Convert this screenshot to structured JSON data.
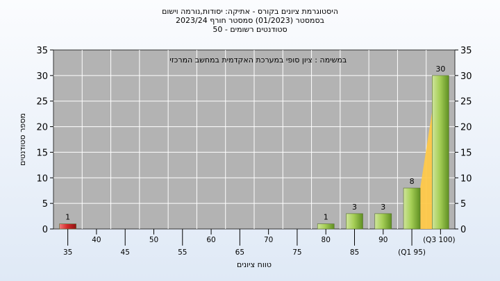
{
  "chart_data": {
    "type": "bar",
    "title": "היסטוגרמת ציונים בקורס - אתיקה: יסודות,נורמה וישום",
    "subtitle_lines": [
      "בסמסטר  (01/2023)  סמסטר חורף  2023/24",
      "סטודנטים רשומים - 50"
    ],
    "annotation": "במשימה : ציון סופי במערכת האקדמית במחשב המרכזי",
    "xlabel": "טווח ציונים",
    "ylabel": "מספר סטודנטים",
    "ylim": [
      0,
      35
    ],
    "yticks": [
      0,
      5,
      10,
      15,
      20,
      25,
      30,
      35
    ],
    "grid": true,
    "x_tick_labels": [
      "35",
      "40",
      "45",
      "50",
      "55",
      "60",
      "65",
      "70",
      "75",
      "80",
      "85",
      "90",
      "(Q1 95)",
      "(Q3 100)"
    ],
    "categories": [
      "35",
      "40",
      "45",
      "50",
      "55",
      "60",
      "65",
      "70",
      "75",
      "80",
      "85",
      "90",
      "95",
      "100"
    ],
    "values": [
      1,
      0,
      0,
      0,
      0,
      0,
      0,
      0,
      0,
      1,
      3,
      3,
      8,
      30
    ],
    "bar_labels": [
      "1",
      "",
      "",
      "",
      "",
      "",
      "",
      "",
      "",
      "1",
      "3",
      "3",
      "8",
      "30"
    ],
    "quartile_band": {
      "from": "95",
      "to": "100",
      "color": "#ffc94a"
    },
    "colors": {
      "plot_bg": "#b3b3b3",
      "grid": "#ffffff",
      "fail_bar": "#d42a2a",
      "pass_bar": "#9bc84a"
    }
  }
}
